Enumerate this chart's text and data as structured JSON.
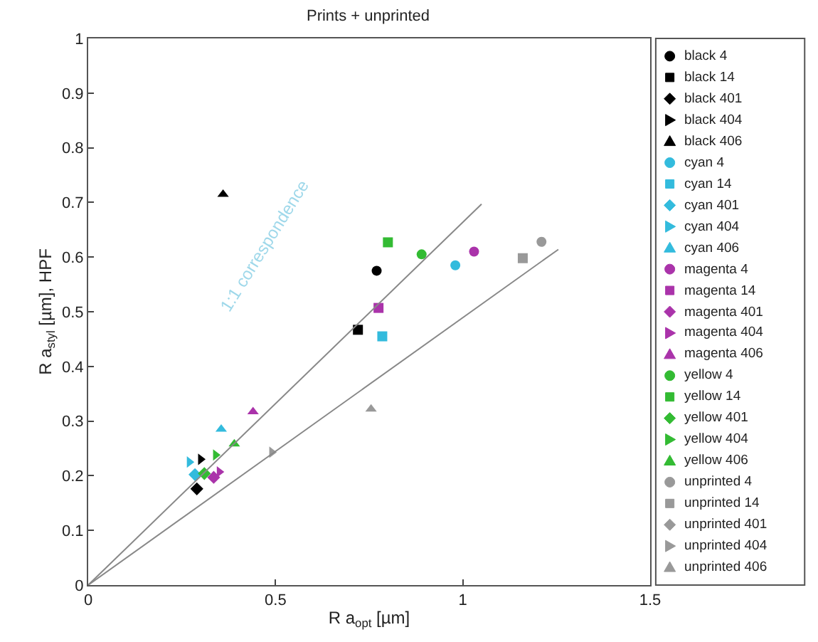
{
  "chart_data": {
    "type": "scatter",
    "title": "Prints + unprinted",
    "xlabel": "R a$_{opt}$ [µm]",
    "ylabel": "R a$_{styl}$ [µm], HPF",
    "xlim": [
      0,
      1.5
    ],
    "xticks": [
      0,
      0.5,
      1,
      1.5
    ],
    "ylim": [
      0,
      1
    ],
    "yticks": [
      0,
      0.1,
      0.2,
      0.3,
      0.4,
      0.5,
      0.6,
      0.7,
      0.8,
      0.9,
      1
    ],
    "legend": "right",
    "annotations": [
      "1:1 correspondence"
    ],
    "series": [
      {
        "name": "black 4",
        "color": "#000000",
        "marker": "circle",
        "x": [
          0.77
        ],
        "values": [
          0.575
        ]
      },
      {
        "name": "black 14",
        "color": "#000000",
        "marker": "square",
        "x": [
          0.72
        ],
        "values": [
          0.467
        ]
      },
      {
        "name": "black 401",
        "color": "#000000",
        "marker": "diamond",
        "x": [
          0.29
        ],
        "values": [
          0.176
        ]
      },
      {
        "name": "black 404",
        "color": "#000000",
        "marker": "triangle-right",
        "x": [
          0.3
        ],
        "values": [
          0.23
        ]
      },
      {
        "name": "black 406",
        "color": "#000000",
        "marker": "triangle",
        "x": [
          0.36
        ],
        "values": [
          0.715
        ]
      },
      {
        "name": "cyan 4",
        "color": "#33bbdd",
        "marker": "circle",
        "x": [
          0.98
        ],
        "values": [
          0.585
        ]
      },
      {
        "name": "cyan 14",
        "color": "#33bbdd",
        "marker": "square",
        "x": [
          0.785
        ],
        "values": [
          0.455
        ]
      },
      {
        "name": "cyan 401",
        "color": "#33bbdd",
        "marker": "diamond",
        "x": [
          0.285
        ],
        "values": [
          0.202
        ]
      },
      {
        "name": "cyan 404",
        "color": "#33bbdd",
        "marker": "triangle-right",
        "x": [
          0.27
        ],
        "values": [
          0.225
        ]
      },
      {
        "name": "cyan 406",
        "color": "#33bbdd",
        "marker": "triangle",
        "x": [
          0.355
        ],
        "values": [
          0.285
        ]
      },
      {
        "name": "magenta 4",
        "color": "#aa33aa",
        "marker": "circle",
        "x": [
          1.03
        ],
        "values": [
          0.61
        ]
      },
      {
        "name": "magenta 14",
        "color": "#aa33aa",
        "marker": "square",
        "x": [
          0.775
        ],
        "values": [
          0.507
        ]
      },
      {
        "name": "magenta 401",
        "color": "#aa33aa",
        "marker": "diamond",
        "x": [
          0.335
        ],
        "values": [
          0.197
        ]
      },
      {
        "name": "magenta 404",
        "color": "#aa33aa",
        "marker": "triangle-right",
        "x": [
          0.35
        ],
        "values": [
          0.207
        ]
      },
      {
        "name": "magenta 406",
        "color": "#aa33aa",
        "marker": "triangle",
        "x": [
          0.44
        ],
        "values": [
          0.317
        ]
      },
      {
        "name": "yellow 4",
        "color": "#33bb33",
        "marker": "circle",
        "x": [
          0.89
        ],
        "values": [
          0.605
        ]
      },
      {
        "name": "yellow 14",
        "color": "#33bb33",
        "marker": "square",
        "x": [
          0.8
        ],
        "values": [
          0.627
        ]
      },
      {
        "name": "yellow 401",
        "color": "#33bb33",
        "marker": "diamond",
        "x": [
          0.31
        ],
        "values": [
          0.204
        ]
      },
      {
        "name": "yellow 404",
        "color": "#33bb33",
        "marker": "triangle-right",
        "x": [
          0.34
        ],
        "values": [
          0.238
        ]
      },
      {
        "name": "yellow 406",
        "color": "#33bb33",
        "marker": "triangle",
        "x": [
          0.39
        ],
        "values": [
          0.258
        ]
      },
      {
        "name": "unprinted 4",
        "color": "#999999",
        "marker": "circle",
        "x": [
          1.21
        ],
        "values": [
          0.628
        ]
      },
      {
        "name": "unprinted 14",
        "color": "#999999",
        "marker": "square",
        "x": [
          1.16
        ],
        "values": [
          0.598
        ]
      },
      {
        "name": "unprinted 401",
        "color": "#999999",
        "marker": "diamond",
        "x": [
          null
        ],
        "values": [
          null
        ]
      },
      {
        "name": "unprinted 404",
        "color": "#999999",
        "marker": "triangle-right",
        "x": [
          0.49
        ],
        "values": [
          0.243
        ]
      },
      {
        "name": "unprinted 406",
        "color": "#999999",
        "marker": "triangle",
        "x": [
          0.755
        ],
        "values": [
          0.322
        ]
      },
      {
        "type": "line",
        "color": "#888888",
        "marker": "none",
        "x": [
          0,
          1.05
        ],
        "values": [
          0,
          0.697
        ]
      },
      {
        "type": "line",
        "color": "#888888",
        "marker": "none",
        "x": [
          0,
          1.255
        ],
        "values": [
          0,
          0.614
        ]
      }
    ]
  }
}
